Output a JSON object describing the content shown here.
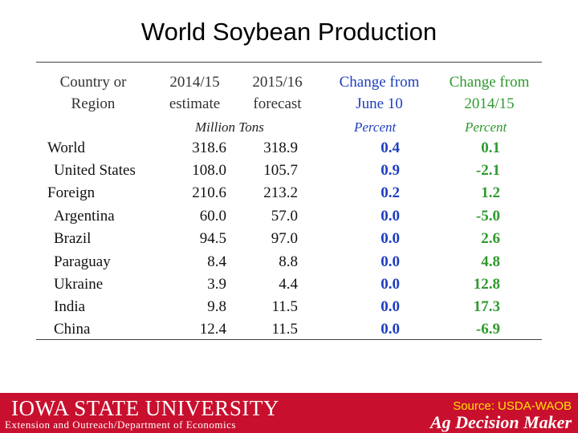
{
  "title": "World Soybean Production",
  "table": {
    "headers": {
      "col1": [
        "Country or",
        "Region"
      ],
      "col2": [
        "2014/15",
        "estimate"
      ],
      "col3": [
        "2015/16",
        "forecast"
      ],
      "col4": [
        "Change from",
        "June 10"
      ],
      "col5": [
        "Change from",
        "2014/15"
      ]
    },
    "units": {
      "tons": "Million Tons",
      "pct1": "Percent",
      "pct2": "Percent"
    },
    "rows": [
      {
        "name": "World",
        "v1": "318.6",
        "v2": "318.9",
        "c1": "0.4",
        "c2": "0.1"
      },
      {
        "name": "United States",
        "v1": "108.0",
        "v2": "105.7",
        "c1": "0.9",
        "c2": "-2.1"
      },
      {
        "name": "Foreign",
        "v1": "210.6",
        "v2": "213.2",
        "c1": "0.2",
        "c2": "1.2"
      },
      {
        "name": "Argentina",
        "v1": "60.0",
        "v2": "57.0",
        "c1": "0.0",
        "c2": "-5.0"
      },
      {
        "name": "Brazil",
        "v1": "94.5",
        "v2": "97.0",
        "c1": "0.0",
        "c2": "2.6"
      },
      {
        "name": "Paraguay",
        "v1": "8.4",
        "v2": "8.8",
        "c1": "0.0",
        "c2": "4.8"
      },
      {
        "name": "Ukraine",
        "v1": "3.9",
        "v2": "4.4",
        "c1": "0.0",
        "c2": "12.8"
      },
      {
        "name": "India",
        "v1": "9.8",
        "v2": "11.5",
        "c1": "0.0",
        "c2": "17.3"
      },
      {
        "name": "China",
        "v1": "12.4",
        "v2": "11.5",
        "c1": "0.0",
        "c2": "-6.9"
      }
    ]
  },
  "footer": {
    "university": "IOWA STATE UNIVERSITY",
    "department": "Extension and Outreach/Department of Economics",
    "source": "Source: USDA-WAOB",
    "brand": "Ag Decision Maker"
  },
  "colors": {
    "blue": "#1f3fbf",
    "green": "#2f9a2f",
    "footer_red": "#c8102e",
    "source_yellow": "#ffe100"
  }
}
